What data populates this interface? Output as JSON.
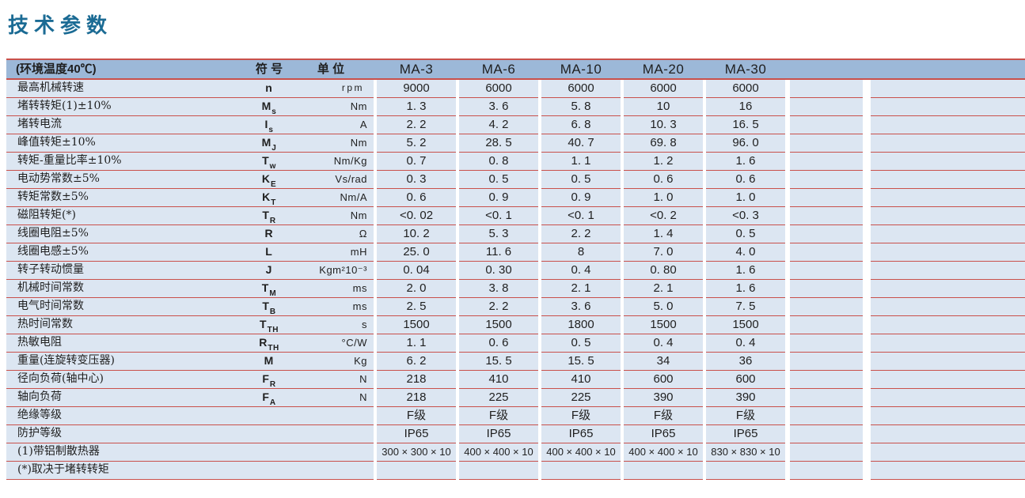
{
  "page": {
    "title": "技术参数"
  },
  "colors": {
    "title": "#1b6b94",
    "header_bg": "#9cb8d8",
    "row_bg": "#dce6f2",
    "grid_red": "#c9504b",
    "text": "#1f1f1f"
  },
  "table": {
    "header": {
      "param": "(环境温度40℃)",
      "symbol": "符 号",
      "unit": "单 位",
      "models": [
        "MA-3",
        "MA-6",
        "MA-10",
        "MA-20",
        "MA-30"
      ]
    },
    "rows": [
      {
        "param": "最高机械转速",
        "sym": "n",
        "sub": "",
        "unit": "rpm",
        "values": [
          "9000",
          "6000",
          "6000",
          "6000",
          "6000"
        ]
      },
      {
        "param": "堵转转矩(1)±10%",
        "sym": "M",
        "sub": "s",
        "unit": "Nm",
        "values": [
          "1. 3",
          "3. 6",
          "5. 8",
          "10",
          "16"
        ]
      },
      {
        "param": "堵转电流",
        "sym": "I",
        "sub": "s",
        "unit": "A",
        "values": [
          "2. 2",
          "4. 2",
          "6. 8",
          "10. 3",
          "16. 5"
        ]
      },
      {
        "param": "峰值转矩±10%",
        "sym": "M",
        "sub": "J",
        "unit": "Nm",
        "values": [
          "5. 2",
          "28. 5",
          "40. 7",
          "69. 8",
          "96. 0"
        ]
      },
      {
        "param": "转矩-重量比率±10%",
        "sym": "T",
        "sub": "w",
        "unit": "Nm/Kg",
        "values": [
          "0. 7",
          "0. 8",
          "1. 1",
          "1. 2",
          "1. 6"
        ]
      },
      {
        "param": "电动势常数±5%",
        "sym": "K",
        "sub": "E",
        "unit": "Vs/rad",
        "values": [
          "0. 3",
          "0. 5",
          "0. 5",
          "0. 6",
          "0. 6"
        ]
      },
      {
        "param": "转矩常数±5%",
        "sym": "K",
        "sub": "T",
        "unit": "Nm/A",
        "values": [
          "0. 6",
          "0. 9",
          "0. 9",
          "1. 0",
          "1. 0"
        ]
      },
      {
        "param": "磁阻转矩(*)",
        "sym": "T",
        "sub": "R",
        "unit": "Nm",
        "values": [
          "<0. 02",
          "<0. 1",
          "<0. 1",
          "<0. 2",
          "<0. 3"
        ]
      },
      {
        "param": "线圈电阻±5%",
        "sym": "R",
        "sub": "",
        "unit": "Ω",
        "values": [
          "10. 2",
          "5. 3",
          "2. 2",
          "1. 4",
          "0. 5"
        ]
      },
      {
        "param": "线圈电感±5%",
        "sym": "L",
        "sub": "",
        "unit": "mH",
        "values": [
          "25. 0",
          "11. 6",
          "8",
          "7. 0",
          "4. 0"
        ]
      },
      {
        "param": "转子转动惯量",
        "sym": "J",
        "sub": "",
        "unit": "Kgm²10⁻³",
        "values": [
          "0. 04",
          "0. 30",
          "0. 4",
          "0. 80",
          "1. 6"
        ]
      },
      {
        "param": "机械时间常数",
        "sym": "T",
        "sub": "M",
        "unit": "ms",
        "values": [
          "2. 0",
          "3. 8",
          "2. 1",
          "2. 1",
          "1. 6"
        ]
      },
      {
        "param": "电气时间常数",
        "sym": "T",
        "sub": "B",
        "unit": "ms",
        "values": [
          "2. 5",
          "2. 2",
          "3. 6",
          "5. 0",
          "7. 5"
        ]
      },
      {
        "param": "热时间常数",
        "sym": "T",
        "sub": "TH",
        "unit": "s",
        "values": [
          "1500",
          "1500",
          "1800",
          "1500",
          "1500"
        ]
      },
      {
        "param": "热敏电阻",
        "sym": "R",
        "sub": "TH",
        "unit": "°C/W",
        "values": [
          "1. 1",
          "0. 6",
          "0. 5",
          "0. 4",
          "0. 4"
        ]
      },
      {
        "param": "重量(连旋转变压器)",
        "sym": "M",
        "sub": "",
        "unit": "Kg",
        "values": [
          "6. 2",
          "15. 5",
          "15. 5",
          "34",
          "36"
        ]
      },
      {
        "param": "径向负荷(轴中心)",
        "sym": "F",
        "sub": "R",
        "unit": "N",
        "values": [
          "218",
          "410",
          "410",
          "600",
          "600"
        ]
      },
      {
        "param": "轴向负荷",
        "sym": "F",
        "sub": "A",
        "unit": "N",
        "values": [
          "218",
          "225",
          "225",
          "390",
          "390"
        ]
      },
      {
        "param": "绝缘等级",
        "sym": "",
        "sub": "",
        "unit": "",
        "values": [
          "F级",
          "F级",
          "F级",
          "F级",
          "F级"
        ]
      },
      {
        "param": "防护等级",
        "sym": "",
        "sub": "",
        "unit": "",
        "values": [
          "IP65",
          "IP65",
          "IP65",
          "IP65",
          "IP65"
        ]
      },
      {
        "param": "(1)带铝制散热器",
        "sym": "",
        "sub": "",
        "unit": "",
        "values": [
          "300 × 300 × 10",
          "400 × 400 × 10",
          "400 × 400 × 10",
          "400 × 400 × 10",
          "830 × 830 × 10"
        ]
      },
      {
        "param": "(*)取决于堵转转矩",
        "sym": "",
        "sub": "",
        "unit": "",
        "values": [
          "",
          "",
          "",
          "",
          ""
        ]
      }
    ]
  }
}
